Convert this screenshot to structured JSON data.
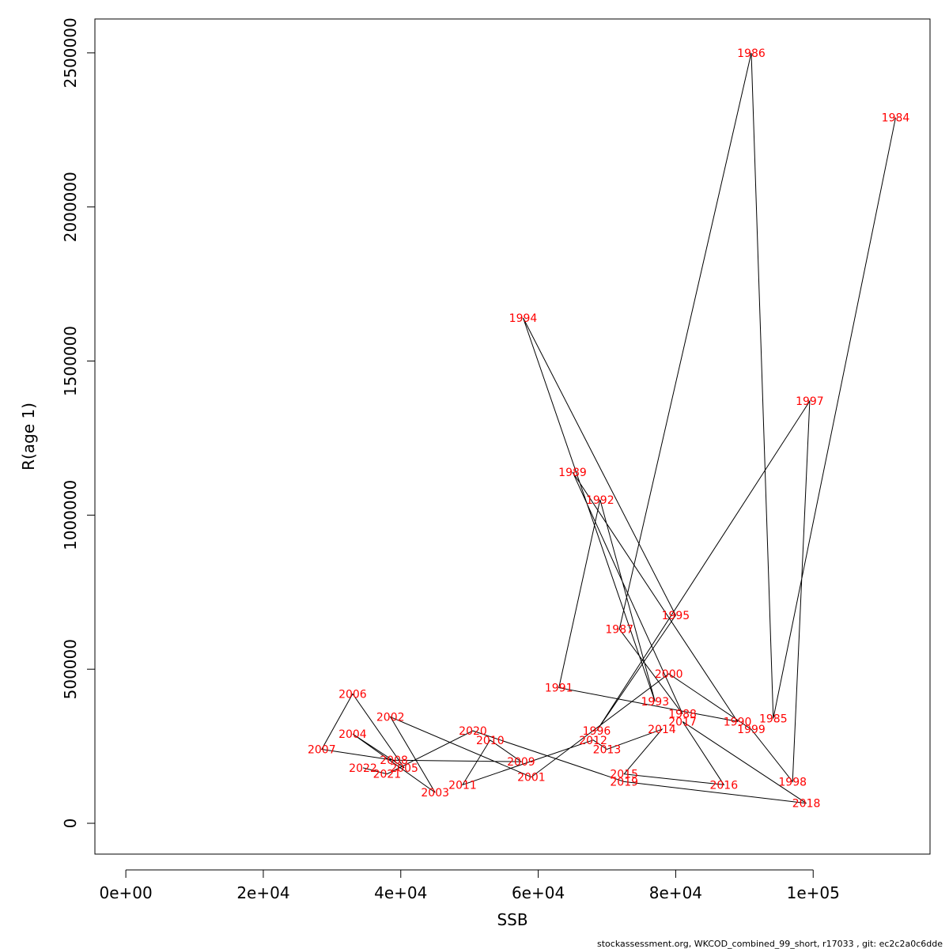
{
  "chart_data": {
    "type": "line",
    "xlabel": "SSB",
    "ylabel": "R(age 1)",
    "xlim": [
      -4500,
      117000
    ],
    "ylim": [
      -100000,
      2610000
    ],
    "x_ticks": [
      0,
      20000,
      40000,
      60000,
      80000,
      100000
    ],
    "x_tick_labels": [
      "0e+00",
      "2e+04",
      "4e+04",
      "6e+04",
      "8e+04",
      "1e+05"
    ],
    "y_ticks": [
      0,
      500000,
      1000000,
      1500000,
      2000000,
      2500000
    ],
    "y_tick_labels": [
      "0",
      "500000",
      "1000000",
      "1500000",
      "2000000",
      "2500000"
    ],
    "label_color": "#ff0000",
    "line_color": "#000000",
    "points": [
      {
        "year": "1984",
        "ssb": 112000,
        "r": 2290000
      },
      {
        "year": "1985",
        "ssb": 94200,
        "r": 340000
      },
      {
        "year": "1986",
        "ssb": 91000,
        "r": 2500000
      },
      {
        "year": "1987",
        "ssb": 71800,
        "r": 630000
      },
      {
        "year": "1988",
        "ssb": 81000,
        "r": 355000
      },
      {
        "year": "1989",
        "ssb": 65000,
        "r": 1140000
      },
      {
        "year": "1990",
        "ssb": 89000,
        "r": 330000
      },
      {
        "year": "1991",
        "ssb": 63000,
        "r": 440000
      },
      {
        "year": "1992",
        "ssb": 69000,
        "r": 1050000
      },
      {
        "year": "1993",
        "ssb": 77000,
        "r": 395000
      },
      {
        "year": "1994",
        "ssb": 57800,
        "r": 1640000
      },
      {
        "year": "1995",
        "ssb": 80000,
        "r": 675000
      },
      {
        "year": "1996",
        "ssb": 68500,
        "r": 300000
      },
      {
        "year": "1997",
        "ssb": 99500,
        "r": 1370000
      },
      {
        "year": "1998",
        "ssb": 97000,
        "r": 135000
      },
      {
        "year": "1999",
        "ssb": 91000,
        "r": 305000
      },
      {
        "year": "2000",
        "ssb": 79000,
        "r": 485000
      },
      {
        "year": "2001",
        "ssb": 59000,
        "r": 150000
      },
      {
        "year": "2002",
        "ssb": 38500,
        "r": 345000
      },
      {
        "year": "2003",
        "ssb": 45000,
        "r": 100000
      },
      {
        "year": "2004",
        "ssb": 33000,
        "r": 290000
      },
      {
        "year": "2005",
        "ssb": 40500,
        "r": 180000
      },
      {
        "year": "2006",
        "ssb": 33000,
        "r": 420000
      },
      {
        "year": "2007",
        "ssb": 28500,
        "r": 240000
      },
      {
        "year": "2008",
        "ssb": 39000,
        "r": 205000
      },
      {
        "year": "2009",
        "ssb": 57500,
        "r": 200000
      },
      {
        "year": "2010",
        "ssb": 53000,
        "r": 270000
      },
      {
        "year": "2011",
        "ssb": 49000,
        "r": 125000
      },
      {
        "year": "2012",
        "ssb": 68000,
        "r": 270000
      },
      {
        "year": "2013",
        "ssb": 70000,
        "r": 240000
      },
      {
        "year": "2014",
        "ssb": 78000,
        "r": 305000
      },
      {
        "year": "2015",
        "ssb": 72500,
        "r": 160000
      },
      {
        "year": "2016",
        "ssb": 87000,
        "r": 125000
      },
      {
        "year": "2017",
        "ssb": 81000,
        "r": 330000
      },
      {
        "year": "2018",
        "ssb": 99000,
        "r": 65000
      },
      {
        "year": "2019",
        "ssb": 72500,
        "r": 135000
      },
      {
        "year": "2020",
        "ssb": 50500,
        "r": 300000
      },
      {
        "year": "2021",
        "ssb": 38000,
        "r": 160000
      },
      {
        "year": "2022",
        "ssb": 34500,
        "r": 180000
      }
    ]
  },
  "footer": "stockassessment.org, WKCOD_combined_99_short, r17033 , git: ec2c2a0c6dde"
}
